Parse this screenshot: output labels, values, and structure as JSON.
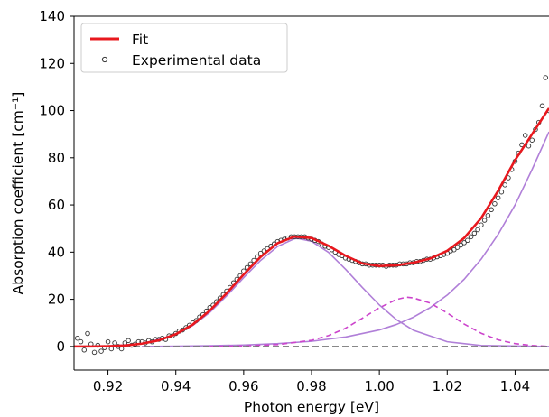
{
  "chart_data": {
    "type": "line",
    "xlabel": "Photon energy [eV]",
    "ylabel": "Absorption coefficient [cm⁻¹]",
    "xlim": [
      0.91,
      1.05
    ],
    "ylim": [
      -10,
      140
    ],
    "xticks": [
      0.92,
      0.94,
      0.96,
      0.98,
      1.0,
      1.02,
      1.04
    ],
    "xtick_labels": [
      "0.92",
      "0.94",
      "0.96",
      "0.98",
      "1.00",
      "1.02",
      "1.04"
    ],
    "yticks": [
      0,
      20,
      40,
      60,
      80,
      100,
      120,
      140
    ],
    "ytick_labels": [
      "0",
      "20",
      "40",
      "60",
      "80",
      "100",
      "120",
      "140"
    ],
    "grid": false,
    "legend_position": "top-left",
    "legend": [
      {
        "label": "Fit",
        "kind": "line",
        "color": "#e8181e"
      },
      {
        "label": "Experimental data",
        "kind": "marker",
        "color": "#333333"
      }
    ],
    "series": [
      {
        "name": "Fit",
        "color": "#e8181e",
        "x": [
          0.91,
          0.915,
          0.92,
          0.925,
          0.93,
          0.935,
          0.94,
          0.945,
          0.95,
          0.955,
          0.96,
          0.965,
          0.97,
          0.975,
          0.98,
          0.985,
          0.99,
          0.995,
          1.0,
          1.005,
          1.01,
          1.015,
          1.02,
          1.025,
          1.03,
          1.035,
          1.04,
          1.045,
          1.05
        ],
        "y": [
          0,
          0,
          0.1,
          0.4,
          1.2,
          2.6,
          5.2,
          9.3,
          15.2,
          22.6,
          30.5,
          38.0,
          43.8,
          46.6,
          46.0,
          42.7,
          38.5,
          35.2,
          34.1,
          34.4,
          35.5,
          37.3,
          40.6,
          46.0,
          54.4,
          66.0,
          79.0,
          90.0,
          101.0
        ]
      },
      {
        "color": "#b07fd8",
        "style": "solid",
        "x": [
          0.91,
          0.92,
          0.93,
          0.94,
          0.945,
          0.95,
          0.955,
          0.96,
          0.965,
          0.97,
          0.975,
          0.976,
          0.98,
          0.985,
          0.99,
          0.995,
          1.0,
          1.005,
          1.01,
          1.02,
          1.03,
          1.05
        ],
        "y": [
          0,
          0.1,
          1.2,
          5.0,
          8.9,
          14.4,
          21.5,
          29.2,
          36.5,
          42.4,
          45.7,
          45.8,
          44.6,
          39.9,
          32.8,
          25.0,
          17.6,
          11.4,
          6.9,
          2.0,
          0.4,
          0
        ]
      },
      {
        "color": "#b07fd8",
        "style": "solid",
        "x": [
          0.93,
          0.94,
          0.95,
          0.96,
          0.97,
          0.98,
          0.99,
          1.0,
          1.005,
          1.01,
          1.015,
          1.02,
          1.025,
          1.03,
          1.035,
          1.04,
          1.045,
          1.05
        ],
        "y": [
          0,
          0.1,
          0.3,
          0.6,
          1.2,
          2.2,
          4.0,
          7.0,
          9.3,
          12.4,
          16.5,
          21.8,
          28.5,
          37.0,
          47.5,
          60.0,
          75.0,
          91.0
        ]
      },
      {
        "color": "#cc44cc",
        "style": "dashed",
        "x": [
          0.95,
          0.96,
          0.97,
          0.98,
          0.985,
          0.99,
          0.995,
          1.0,
          1.005,
          1.008,
          1.01,
          1.015,
          1.02,
          1.025,
          1.03,
          1.035,
          1.04,
          1.045,
          1.05
        ],
        "y": [
          0,
          0.2,
          0.8,
          2.6,
          4.6,
          7.7,
          12.0,
          16.4,
          19.9,
          20.9,
          20.6,
          18.4,
          14.2,
          9.5,
          5.6,
          2.8,
          1.2,
          0.4,
          0
        ]
      },
      {
        "color": "#777777",
        "style": "dashed",
        "x": [
          0.91,
          1.05
        ],
        "y": [
          0,
          0
        ]
      },
      {
        "name": "Experimental data",
        "kind": "scatter",
        "color": "#333333",
        "x": [
          0.911,
          0.912,
          0.913,
          0.914,
          0.915,
          0.916,
          0.917,
          0.918,
          0.919,
          0.92,
          0.921,
          0.922,
          0.923,
          0.924,
          0.925,
          0.926,
          0.927,
          0.928,
          0.929,
          0.93,
          0.931,
          0.932,
          0.933,
          0.934,
          0.935,
          0.936,
          0.937,
          0.938,
          0.939,
          0.94,
          0.941,
          0.942,
          0.943,
          0.944,
          0.945,
          0.946,
          0.947,
          0.948,
          0.949,
          0.95,
          0.951,
          0.952,
          0.953,
          0.954,
          0.955,
          0.956,
          0.957,
          0.958,
          0.959,
          0.96,
          0.961,
          0.962,
          0.963,
          0.964,
          0.965,
          0.966,
          0.967,
          0.968,
          0.969,
          0.97,
          0.971,
          0.972,
          0.973,
          0.974,
          0.975,
          0.976,
          0.977,
          0.978,
          0.979,
          0.98,
          0.981,
          0.982,
          0.983,
          0.984,
          0.985,
          0.986,
          0.987,
          0.988,
          0.989,
          0.99,
          0.991,
          0.992,
          0.993,
          0.994,
          0.995,
          0.996,
          0.997,
          0.998,
          0.999,
          1.0,
          1.001,
          1.002,
          1.003,
          1.004,
          1.005,
          1.006,
          1.007,
          1.008,
          1.009,
          1.01,
          1.011,
          1.012,
          1.013,
          1.014,
          1.015,
          1.016,
          1.017,
          1.018,
          1.019,
          1.02,
          1.021,
          1.022,
          1.023,
          1.024,
          1.025,
          1.026,
          1.027,
          1.028,
          1.029,
          1.03,
          1.031,
          1.032,
          1.033,
          1.034,
          1.035,
          1.036,
          1.037,
          1.038,
          1.039,
          1.04,
          1.041,
          1.042,
          1.043,
          1.044,
          1.045,
          1.046,
          1.047,
          1.048,
          1.049,
          1.05
        ],
        "y": [
          3.5,
          2.0,
          -1.5,
          5.5,
          1.0,
          -2.5,
          0.5,
          -2.0,
          -0.5,
          2.0,
          -1.0,
          1.5,
          0.0,
          -1.0,
          1.5,
          2.5,
          0.5,
          1.0,
          2.0,
          2.0,
          1.5,
          2.5,
          2.0,
          3.0,
          3.0,
          3.5,
          3.0,
          4.5,
          4.5,
          5.5,
          6.5,
          7.0,
          8.0,
          9.0,
          10.0,
          11.0,
          12.5,
          13.5,
          15.0,
          16.5,
          17.5,
          19.0,
          20.5,
          22.0,
          23.5,
          25.0,
          27.0,
          28.5,
          30.0,
          32.0,
          33.5,
          35.0,
          36.5,
          38.0,
          39.5,
          40.5,
          41.5,
          42.5,
          43.5,
          44.5,
          45.0,
          45.5,
          46.0,
          46.5,
          46.5,
          46.5,
          46.5,
          46.5,
          46.0,
          45.5,
          45.0,
          44.5,
          43.5,
          42.5,
          42.0,
          41.0,
          40.0,
          39.0,
          38.5,
          37.5,
          37.0,
          36.5,
          36.0,
          35.5,
          35.0,
          35.0,
          34.5,
          34.5,
          34.5,
          34.5,
          34.5,
          34.0,
          34.5,
          34.5,
          34.5,
          35.0,
          35.0,
          35.0,
          35.5,
          35.5,
          36.0,
          36.0,
          36.5,
          37.0,
          37.0,
          37.5,
          38.0,
          38.5,
          39.0,
          39.5,
          40.5,
          41.0,
          42.0,
          43.0,
          44.0,
          45.0,
          46.5,
          48.0,
          49.5,
          51.5,
          53.5,
          55.5,
          58.0,
          60.5,
          63.0,
          65.5,
          68.5,
          71.5,
          75.0,
          78.5,
          82.0,
          85.5,
          89.5,
          85.0,
          87.5,
          92.0,
          95.0,
          102.0,
          114.0,
          100.0
        ]
      }
    ]
  }
}
